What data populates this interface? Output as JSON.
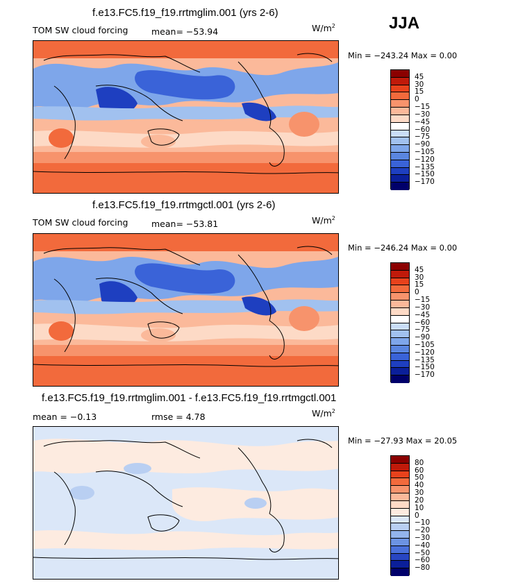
{
  "season": "JJA",
  "panels": [
    {
      "title": "f.e13.FC5.f19_f19.rrtmglim.001 (yrs 2-6)",
      "variable": "TOM SW cloud forcing",
      "stat": "mean=  −53.94",
      "units": "W/m",
      "units_sup": "2",
      "minmax": "Min = −243.24  Max =     0.00",
      "colorbar_labels": [
        "45",
        "30",
        "15",
        "0",
        "−15",
        "−30",
        "−45",
        "−60",
        "−75",
        "−90",
        "−105",
        "−120",
        "−135",
        "−150",
        "−170"
      ],
      "colorbar_colors": [
        "#8b0000",
        "#c01a0a",
        "#e8421c",
        "#f26a3c",
        "#f7936c",
        "#fbb99a",
        "#fddac6",
        "#ffffff",
        "#c9ddf7",
        "#a1c1ef",
        "#7ea6ea",
        "#5a86e0",
        "#3a63d8",
        "#1e3fc0",
        "#0b1f9a",
        "#00006a"
      ],
      "chart_data": {
        "type": "heatmap",
        "title": "f.e13.FC5.f19_f19.rrtmglim.001 (yrs 2-6)",
        "variable": "TOM SW cloud forcing",
        "season": "JJA",
        "units": "W/m2",
        "mean": -53.94,
        "min": -243.24,
        "max": 0.0,
        "levels": [
          45,
          30,
          15,
          0,
          -15,
          -30,
          -45,
          -60,
          -75,
          -90,
          -105,
          -120,
          -135,
          -150,
          -170
        ]
      }
    },
    {
      "title": "f.e13.FC5.f19_f19.rrtmgctl.001 (yrs 2-6)",
      "variable": "TOM SW cloud forcing",
      "stat": "mean=  −53.81",
      "units": "W/m",
      "units_sup": "2",
      "minmax": "Min = −246.24  Max =     0.00",
      "colorbar_labels": [
        "45",
        "30",
        "15",
        "0",
        "−15",
        "−30",
        "−45",
        "−60",
        "−75",
        "−90",
        "−105",
        "−120",
        "−135",
        "−150",
        "−170"
      ],
      "colorbar_colors": [
        "#8b0000",
        "#c01a0a",
        "#e8421c",
        "#f26a3c",
        "#f7936c",
        "#fbb99a",
        "#fddac6",
        "#ffffff",
        "#c9ddf7",
        "#a1c1ef",
        "#7ea6ea",
        "#5a86e0",
        "#3a63d8",
        "#1e3fc0",
        "#0b1f9a",
        "#00006a"
      ],
      "chart_data": {
        "type": "heatmap",
        "title": "f.e13.FC5.f19_f19.rrtmgctl.001 (yrs 2-6)",
        "variable": "TOM SW cloud forcing",
        "season": "JJA",
        "units": "W/m2",
        "mean": -53.81,
        "min": -246.24,
        "max": 0.0,
        "levels": [
          45,
          30,
          15,
          0,
          -15,
          -30,
          -45,
          -60,
          -75,
          -90,
          -105,
          -120,
          -135,
          -150,
          -170
        ]
      }
    },
    {
      "title": "f.e13.FC5.f19_f19.rrtmglim.001 - f.e13.FC5.f19_f19.rrtmgctl.001",
      "stat_mean": "mean =   −0.13",
      "stat_rmse": "rmse =    4.78",
      "units": "W/m",
      "units_sup": "2",
      "minmax": "Min = −27.93  Max =   20.05",
      "colorbar_labels": [
        "80",
        "60",
        "50",
        "40",
        "30",
        "20",
        "10",
        "0",
        "−10",
        "−20",
        "−30",
        "−40",
        "−50",
        "−60",
        "−80"
      ],
      "colorbar_colors": [
        "#8b0000",
        "#c01a0a",
        "#e8421c",
        "#f26a3c",
        "#f7936c",
        "#fbb99a",
        "#fddac6",
        "#fdebe0",
        "#dbe7f8",
        "#b9cff2",
        "#93b4ec",
        "#6c93e3",
        "#4a70da",
        "#2846c2",
        "#0b1f9a",
        "#00006a"
      ],
      "chart_data": {
        "type": "heatmap",
        "title": "f.e13.FC5.f19_f19.rrtmglim.001 - f.e13.FC5.f19_f19.rrtmgctl.001",
        "units": "W/m2",
        "mean": -0.13,
        "rmse": 4.78,
        "min": -27.93,
        "max": 20.05,
        "levels": [
          80,
          60,
          50,
          40,
          30,
          20,
          10,
          0,
          -10,
          -20,
          -30,
          -40,
          -50,
          -60,
          -80
        ]
      }
    }
  ]
}
